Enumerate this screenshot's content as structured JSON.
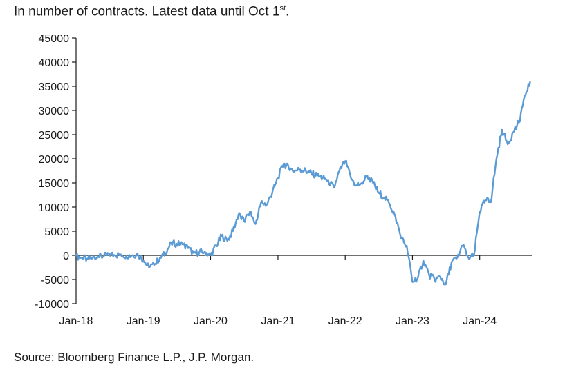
{
  "header": {
    "subtitle_prefix": "In number of contracts. Latest data until Oct 1",
    "subtitle_sup": "st",
    "subtitle_suffix": "."
  },
  "footer": {
    "source": "Source: Bloomberg Finance L.P., J.P. Morgan."
  },
  "colors": {
    "line": "#5b9bd5",
    "axis": "#1a1a1a"
  },
  "chart_data": {
    "type": "line",
    "title": "",
    "xlabel": "",
    "ylabel": "",
    "ylim": [
      -10000,
      45000
    ],
    "yticks": [
      45000,
      40000,
      35000,
      30000,
      25000,
      20000,
      15000,
      10000,
      5000,
      0,
      -5000,
      -10000
    ],
    "xticks": [
      "Jan-18",
      "Jan-19",
      "Jan-20",
      "Jan-21",
      "Jan-22",
      "Jan-23",
      "Jan-24"
    ],
    "xlim": [
      "2018-01-01",
      "2024-10-01"
    ],
    "grid": false,
    "series": [
      {
        "x": [
          "2018-01-01",
          "2018-02-01",
          "2018-03-01",
          "2018-04-01",
          "2018-05-01",
          "2018-06-01",
          "2018-07-01",
          "2018-08-01",
          "2018-09-01",
          "2018-10-01",
          "2018-11-01",
          "2018-12-01",
          "2019-01-01",
          "2019-02-01",
          "2019-03-01",
          "2019-04-01",
          "2019-05-01",
          "2019-06-01",
          "2019-07-01",
          "2019-08-01",
          "2019-09-01",
          "2019-10-01",
          "2019-11-01",
          "2019-12-01",
          "2020-01-01",
          "2020-02-01",
          "2020-03-01",
          "2020-04-01",
          "2020-05-01",
          "2020-06-01",
          "2020-07-01",
          "2020-08-01",
          "2020-09-01",
          "2020-10-01",
          "2020-11-01",
          "2020-12-01",
          "2021-01-01",
          "2021-02-01",
          "2021-03-01",
          "2021-04-01",
          "2021-05-01",
          "2021-06-01",
          "2021-07-01",
          "2021-08-01",
          "2021-09-01",
          "2021-10-01",
          "2021-11-01",
          "2021-12-01",
          "2022-01-01",
          "2022-02-01",
          "2022-03-01",
          "2022-04-01",
          "2022-05-01",
          "2022-06-01",
          "2022-07-01",
          "2022-08-01",
          "2022-09-01",
          "2022-10-01",
          "2022-11-01",
          "2022-12-01",
          "2023-01-01",
          "2023-02-01",
          "2023-03-01",
          "2023-04-01",
          "2023-05-01",
          "2023-06-01",
          "2023-07-01",
          "2023-08-01",
          "2023-09-01",
          "2023-10-01",
          "2023-11-01",
          "2023-12-01",
          "2024-01-01",
          "2024-02-01",
          "2024-03-01",
          "2024-04-01",
          "2024-05-01",
          "2024-06-01",
          "2024-07-01",
          "2024-08-01",
          "2024-09-01",
          "2024-10-01"
        ],
        "values": [
          -200,
          -500,
          -700,
          -400,
          -300,
          -200,
          300,
          0,
          200,
          -100,
          0,
          300,
          -1000,
          -2500,
          -2000,
          -500,
          500,
          2500,
          2400,
          2300,
          1500,
          500,
          600,
          800,
          0,
          2000,
          4000,
          3000,
          5000,
          8500,
          7000,
          9000,
          6500,
          11000,
          10500,
          13000,
          16000,
          19000,
          18000,
          17500,
          17800,
          17500,
          17000,
          16500,
          16000,
          15500,
          14000,
          17500,
          19500,
          16000,
          14500,
          15000,
          16500,
          15000,
          13000,
          12000,
          10500,
          8000,
          3500,
          2000,
          -5500,
          -4500,
          -1000,
          -4000,
          -5000,
          -4500,
          -6000,
          -1500,
          -500,
          2000,
          -500,
          0,
          9000,
          11500,
          11000,
          20000,
          26000,
          23000,
          25500,
          27500,
          33000,
          36000
        ]
      }
    ]
  }
}
